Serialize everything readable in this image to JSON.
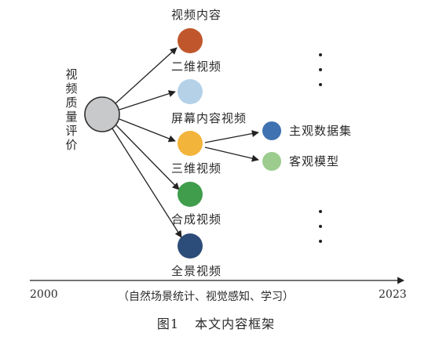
{
  "root": {
    "label": "视频质量评价",
    "color": "#c8c9cb"
  },
  "branches": [
    {
      "label": "视频内容",
      "color": "#c0572c"
    },
    {
      "label": "二维视频",
      "color": "#b4d1e8"
    },
    {
      "label": "屏幕内容视频",
      "color": "#f3b43b"
    },
    {
      "label": "三维视频",
      "color": "#3f9d4c"
    },
    {
      "label": "合成视频",
      "color": "#2c4c79"
    },
    {
      "label": "全景视频",
      "color": "#2c4c79"
    }
  ],
  "sub_branches": [
    {
      "label": "主观数据集",
      "color": "#3f72b1"
    },
    {
      "label": "客观模型",
      "color": "#9ccc8e"
    }
  ],
  "timeline": {
    "start": "2000",
    "end": "2023",
    "note": "（自然场景统计、视觉感知、学习）"
  },
  "caption": {
    "figure": "图1",
    "title": "本文内容框架"
  }
}
